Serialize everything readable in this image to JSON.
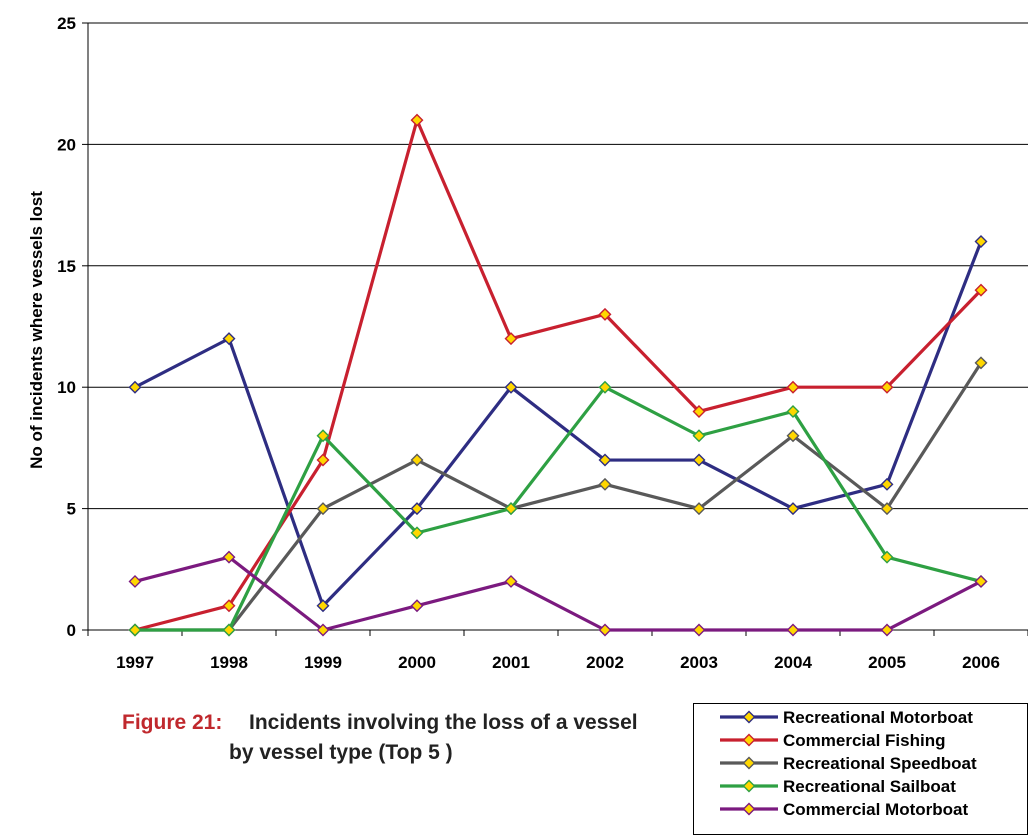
{
  "caption": {
    "label": "Figure 21:",
    "line1": "Incidents involving the loss of a vessel",
    "line2": "by vessel type (Top 5 )"
  },
  "chart_data": {
    "type": "line",
    "title": "",
    "xlabel": "",
    "ylabel": "No of incidents where vessels lost",
    "x": [
      "1997",
      "1998",
      "1999",
      "2000",
      "2001",
      "2002",
      "2003",
      "2004",
      "2005",
      "2006"
    ],
    "ylim": [
      0,
      25
    ],
    "yticks": [
      "0",
      "5",
      "10",
      "15",
      "20",
      "25"
    ],
    "grid": true,
    "legend_position": "bottom-right",
    "marker_fill": "#ffd700",
    "series": [
      {
        "name": "Recreational Motorboat",
        "color": "#2e2d82",
        "values": [
          10,
          12,
          1,
          5,
          10,
          7,
          7,
          5,
          6,
          16
        ]
      },
      {
        "name": "Commercial Fishing",
        "color": "#c8202f",
        "values": [
          0,
          1,
          7,
          21,
          12,
          13,
          9,
          10,
          10,
          14
        ]
      },
      {
        "name": "Recreational Speedboat",
        "color": "#595959",
        "values": [
          0,
          0,
          5,
          7,
          5,
          6,
          5,
          8,
          5,
          11
        ]
      },
      {
        "name": "Recreational Sailboat",
        "color": "#2ea043",
        "values": [
          0,
          0,
          8,
          4,
          5,
          10,
          8,
          9,
          3,
          2
        ]
      },
      {
        "name": "Commercial Motorboat",
        "color": "#7b1a7f",
        "values": [
          2,
          3,
          0,
          1,
          2,
          0,
          0,
          0,
          0,
          2
        ]
      }
    ]
  }
}
